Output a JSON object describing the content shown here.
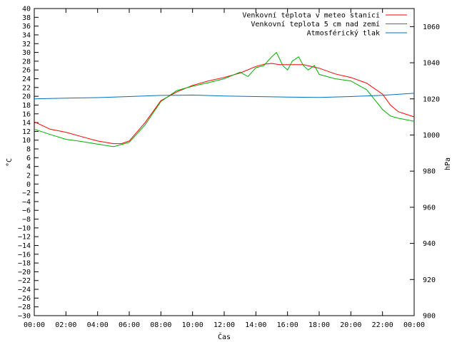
{
  "chart_data": {
    "type": "line",
    "title": "",
    "xlabel": "Čas",
    "ylabel_left": "°C",
    "ylabel_right": "hPa",
    "grid": false,
    "legend_position": "top-right",
    "x_ticks": [
      "00:00",
      "02:00",
      "04:00",
      "06:00",
      "08:00",
      "10:00",
      "12:00",
      "14:00",
      "16:00",
      "18:00",
      "20:00",
      "22:00",
      "00:00"
    ],
    "x_range_hours": [
      0,
      24
    ],
    "ylim_left": [
      -30,
      40
    ],
    "ylim_right": [
      900,
      1070
    ],
    "y_ticks_left": [
      -30,
      -28,
      -26,
      -24,
      -22,
      -20,
      -18,
      -16,
      -14,
      -12,
      -10,
      -8,
      -6,
      -4,
      -2,
      0,
      2,
      4,
      6,
      8,
      10,
      12,
      14,
      16,
      18,
      20,
      22,
      24,
      26,
      28,
      30,
      32,
      34,
      36,
      38,
      40
    ],
    "y_ticks_right": [
      900,
      920,
      940,
      960,
      980,
      1000,
      1020,
      1040,
      1060
    ],
    "series": [
      {
        "name": "Venkovní teplota v meteo stanici",
        "color": "#ff0000",
        "axis": "left",
        "x": [
          0,
          1,
          2,
          3,
          4,
          5,
          5.5,
          6,
          7,
          8,
          9,
          10,
          11,
          12,
          13,
          14,
          14.5,
          15,
          15.5,
          16,
          17,
          18,
          19,
          20,
          21,
          22,
          22.5,
          23,
          24
        ],
        "y": [
          14.2,
          12.5,
          11.8,
          10.8,
          9.8,
          9.2,
          9.2,
          9.8,
          14,
          19,
          21,
          22.5,
          23.5,
          24.3,
          25.3,
          26.8,
          27.3,
          27.5,
          27.2,
          27.2,
          27.2,
          26.4,
          25.1,
          24.3,
          23,
          20.5,
          18,
          16.5,
          15.3
        ]
      },
      {
        "name": "Venkovní teplota 5 cm nad zemí",
        "color": "#00b000",
        "axis": "left",
        "x": [
          0,
          1,
          2,
          3,
          4,
          5,
          5.5,
          6,
          7,
          8,
          9,
          10,
          11,
          12,
          13,
          13.5,
          14,
          14.5,
          15,
          15.3,
          15.7,
          16,
          16.3,
          16.7,
          17,
          17.3,
          17.7,
          18,
          19,
          20,
          21,
          22,
          22.5,
          23,
          24
        ],
        "y": [
          12.5,
          11.3,
          10.2,
          9.7,
          9.1,
          8.5,
          9,
          9.5,
          13.5,
          18.8,
          21.3,
          22.3,
          23.1,
          24,
          25.5,
          24.5,
          26.5,
          27,
          29,
          30,
          27,
          26,
          28,
          29,
          27,
          26,
          27,
          25,
          24,
          23.5,
          21.5,
          17,
          15.5,
          15,
          14.3
        ]
      },
      {
        "name": "Atmosférický tlak",
        "color": "#0070c0",
        "axis": "right",
        "x": [
          0,
          2,
          4,
          6,
          8,
          10,
          12,
          14,
          16,
          18,
          20,
          22,
          24
        ],
        "y": [
          1020,
          1020.4,
          1020.7,
          1021.3,
          1021.9,
          1022.1,
          1021.6,
          1021.3,
          1021,
          1020.8,
          1021.3,
          1022,
          1023.1
        ]
      }
    ]
  }
}
